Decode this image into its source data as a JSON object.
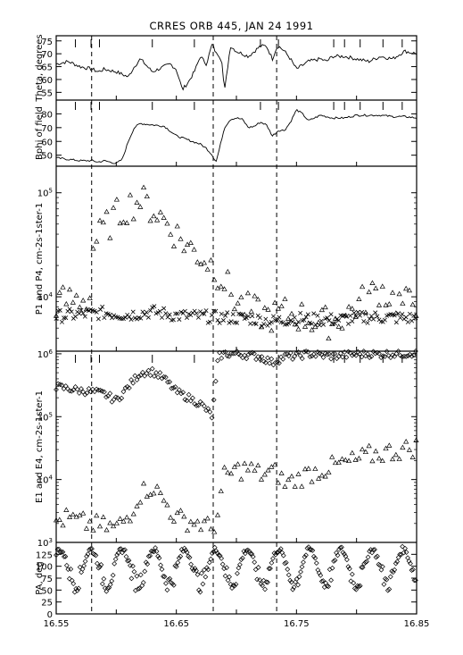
{
  "chart_data": {
    "type": "line",
    "title": "CRRES ORB   445, JAN  24  1991",
    "xaxis": {
      "ticks": [
        "16.55",
        "16.65",
        "16.75",
        "16.85"
      ],
      "range": [
        16.55,
        16.85
      ],
      "event_lines": [
        16.5795,
        16.6807,
        16.7335
      ]
    },
    "panels": [
      {
        "id": "theta",
        "ylabel": "Theta, degrees",
        "ylim": [
          52,
          77
        ],
        "yticks": [
          55,
          60,
          65,
          70,
          75
        ],
        "series": [
          {
            "marker": "line",
            "x": [
              16.55,
              16.56,
              16.57,
              16.58,
              16.585,
              16.59,
              16.6,
              16.605,
              16.61,
              16.615,
              16.62,
              16.63,
              16.64,
              16.645,
              16.65,
              16.655,
              16.66,
              16.665,
              16.67,
              16.675,
              16.68,
              16.683,
              16.685,
              16.688,
              16.69,
              16.695,
              16.7,
              16.705,
              16.71,
              16.715,
              16.72,
              16.725,
              16.73,
              16.733,
              16.735,
              16.74,
              16.745,
              16.75,
              16.76,
              16.77,
              16.775,
              16.78,
              16.79,
              16.8,
              16.81,
              16.82,
              16.83,
              16.84,
              16.85
            ],
            "y": [
              66,
              67,
              65,
              64,
              63,
              64,
              63,
              62,
              61,
              65,
              68,
              63,
              65,
              66,
              64,
              56,
              59,
              63,
              69,
              66,
              74,
              70,
              70,
              67,
              55,
              73,
              71,
              70,
              69,
              71,
              73,
              73,
              68,
              72,
              73,
              71,
              68,
              64,
              67,
              68,
              67,
              69,
              69,
              68,
              67,
              69,
              68,
              71,
              70
            ]
          }
        ]
      },
      {
        "id": "bphi",
        "ylabel": "Bphi of field",
        "ylim": [
          42,
          90
        ],
        "yticks": [
          50,
          60,
          70,
          80
        ],
        "series": [
          {
            "marker": "line",
            "x": [
              16.55,
              16.56,
              16.57,
              16.58,
              16.585,
              16.59,
              16.6,
              16.605,
              16.61,
              16.615,
              16.62,
              16.63,
              16.64,
              16.65,
              16.66,
              16.67,
              16.675,
              16.68,
              16.683,
              16.686,
              16.69,
              16.695,
              16.7,
              16.705,
              16.71,
              16.715,
              16.72,
              16.725,
              16.73,
              16.735,
              16.74,
              16.745,
              16.75,
              16.755,
              16.76,
              16.77,
              16.78,
              16.79,
              16.8,
              16.81,
              16.82,
              16.83,
              16.84,
              16.85
            ],
            "y": [
              48,
              47,
              46,
              46,
              45,
              46,
              44,
              47,
              60,
              70,
              73,
              72,
              71,
              64,
              61,
              58,
              55,
              50,
              45,
              55,
              70,
              76,
              77,
              76,
              70,
              71,
              74,
              72,
              64,
              68,
              68,
              74,
              83,
              80,
              75,
              79,
              77,
              77,
              79,
              79,
              79,
              78,
              78,
              77
            ]
          }
        ]
      },
      {
        "id": "p1p4",
        "ylabel": "P1 and P4, cm-2s-1ster-1",
        "yscale": "log",
        "ylim": [
          3000,
          180000
        ],
        "yticks": [
          10000,
          100000
        ],
        "ytick_labels": [
          "10^4",
          "10^5"
        ],
        "series": [
          {
            "name": "P1",
            "marker": "x",
            "x": [
              16.55,
              16.57,
              16.59,
              16.61,
              16.63,
              16.65,
              16.67,
              16.69,
              16.71,
              16.73,
              16.75,
              16.77,
              16.79,
              16.81,
              16.83,
              16.85
            ],
            "y": [
              6500,
              6800,
              7000,
              6700,
              7200,
              6600,
              6500,
              6300,
              6200,
              5800,
              6200,
              6000,
              6100,
              6400,
              6300,
              6200
            ]
          },
          {
            "name": "P4",
            "marker": "triangle",
            "x": [
              16.55,
              16.56,
              16.57,
              16.579,
              16.58,
              16.59,
              16.6,
              16.61,
              16.62,
              16.63,
              16.64,
              16.65,
              16.66,
              16.67,
              16.68,
              16.69,
              16.7,
              16.71,
              16.72,
              16.73,
              16.74,
              16.75,
              16.76,
              16.77,
              16.78,
              16.79,
              16.8,
              16.81,
              16.82,
              16.83,
              16.84,
              16.85
            ],
            "y": [
              8800,
              9200,
              9500,
              9800,
              30000,
              45000,
              60000,
              75000,
              85000,
              70000,
              55000,
              40000,
              30000,
              25000,
              20000,
              14000,
              9000,
              7500,
              6800,
              6500,
              7000,
              6600,
              6200,
              5500,
              5800,
              6600,
              8200,
              10000,
              12000,
              9500,
              8500,
              9000
            ]
          }
        ]
      },
      {
        "id": "e1e4",
        "ylabel": "E1 and E4, cm-2s-1ster-1",
        "yscale": "log",
        "ylim": [
          1000,
          1100000
        ],
        "yticks": [
          1000,
          10000,
          100000,
          1000000
        ],
        "ytick_labels": [
          "10^3",
          "10^4",
          "10^5",
          "10^6"
        ],
        "series": [
          {
            "name": "E1",
            "marker": "diamond",
            "x": [
              16.55,
              16.56,
              16.57,
              16.58,
              16.59,
              16.6,
              16.61,
              16.62,
              16.63,
              16.64,
              16.65,
              16.66,
              16.67,
              16.675,
              16.68,
              16.685,
              16.69,
              16.7,
              16.71,
              16.72,
              16.73,
              16.74,
              16.75,
              16.76,
              16.77,
              16.78,
              16.79,
              16.8,
              16.81,
              16.82,
              16.83,
              16.84,
              16.85
            ],
            "y": [
              300000,
              280000,
              260000,
              250000,
              230000,
              180000,
              300000,
              500000,
              520000,
              400000,
              250000,
              200000,
              160000,
              130000,
              100000,
              900000,
              1000000,
              1000000,
              950000,
              900000,
              720000,
              900000,
              920000,
              1000000,
              950000,
              920000,
              950000,
              980000,
              1000000,
              980000,
              1000000,
              1000000,
              1050000
            ]
          },
          {
            "name": "E4",
            "marker": "triangle",
            "x": [
              16.55,
              16.56,
              16.57,
              16.58,
              16.59,
              16.6,
              16.61,
              16.62,
              16.63,
              16.64,
              16.65,
              16.66,
              16.67,
              16.675,
              16.68,
              16.685,
              16.69,
              16.7,
              16.71,
              16.72,
              16.73,
              16.735,
              16.74,
              16.75,
              16.76,
              16.77,
              16.78,
              16.79,
              16.8,
              16.81,
              16.82,
              16.83,
              16.84,
              16.85
            ],
            "y": [
              2200,
              2400,
              2100,
              1900,
              1800,
              1700,
              2600,
              6000,
              8000,
              4500,
              2400,
              2200,
              2000,
              1800,
              1600,
              3000,
              11000,
              14000,
              15000,
              12000,
              13000,
              12000,
              8500,
              10000,
              12500,
              14000,
              16000,
              18000,
              20000,
              24000,
              26000,
              28000,
              30000,
              33000
            ]
          }
        ]
      },
      {
        "id": "pa",
        "ylabel": "PA, deg",
        "ylim": [
          0,
          150
        ],
        "yticks": [
          0,
          25,
          50,
          75,
          100,
          125
        ],
        "series": [
          {
            "name": "PA",
            "marker": "diamond",
            "shape": "periodic",
            "mean": 100,
            "amplitude": 35,
            "period": 0.026,
            "phase": 16.553
          }
        ]
      }
    ]
  }
}
